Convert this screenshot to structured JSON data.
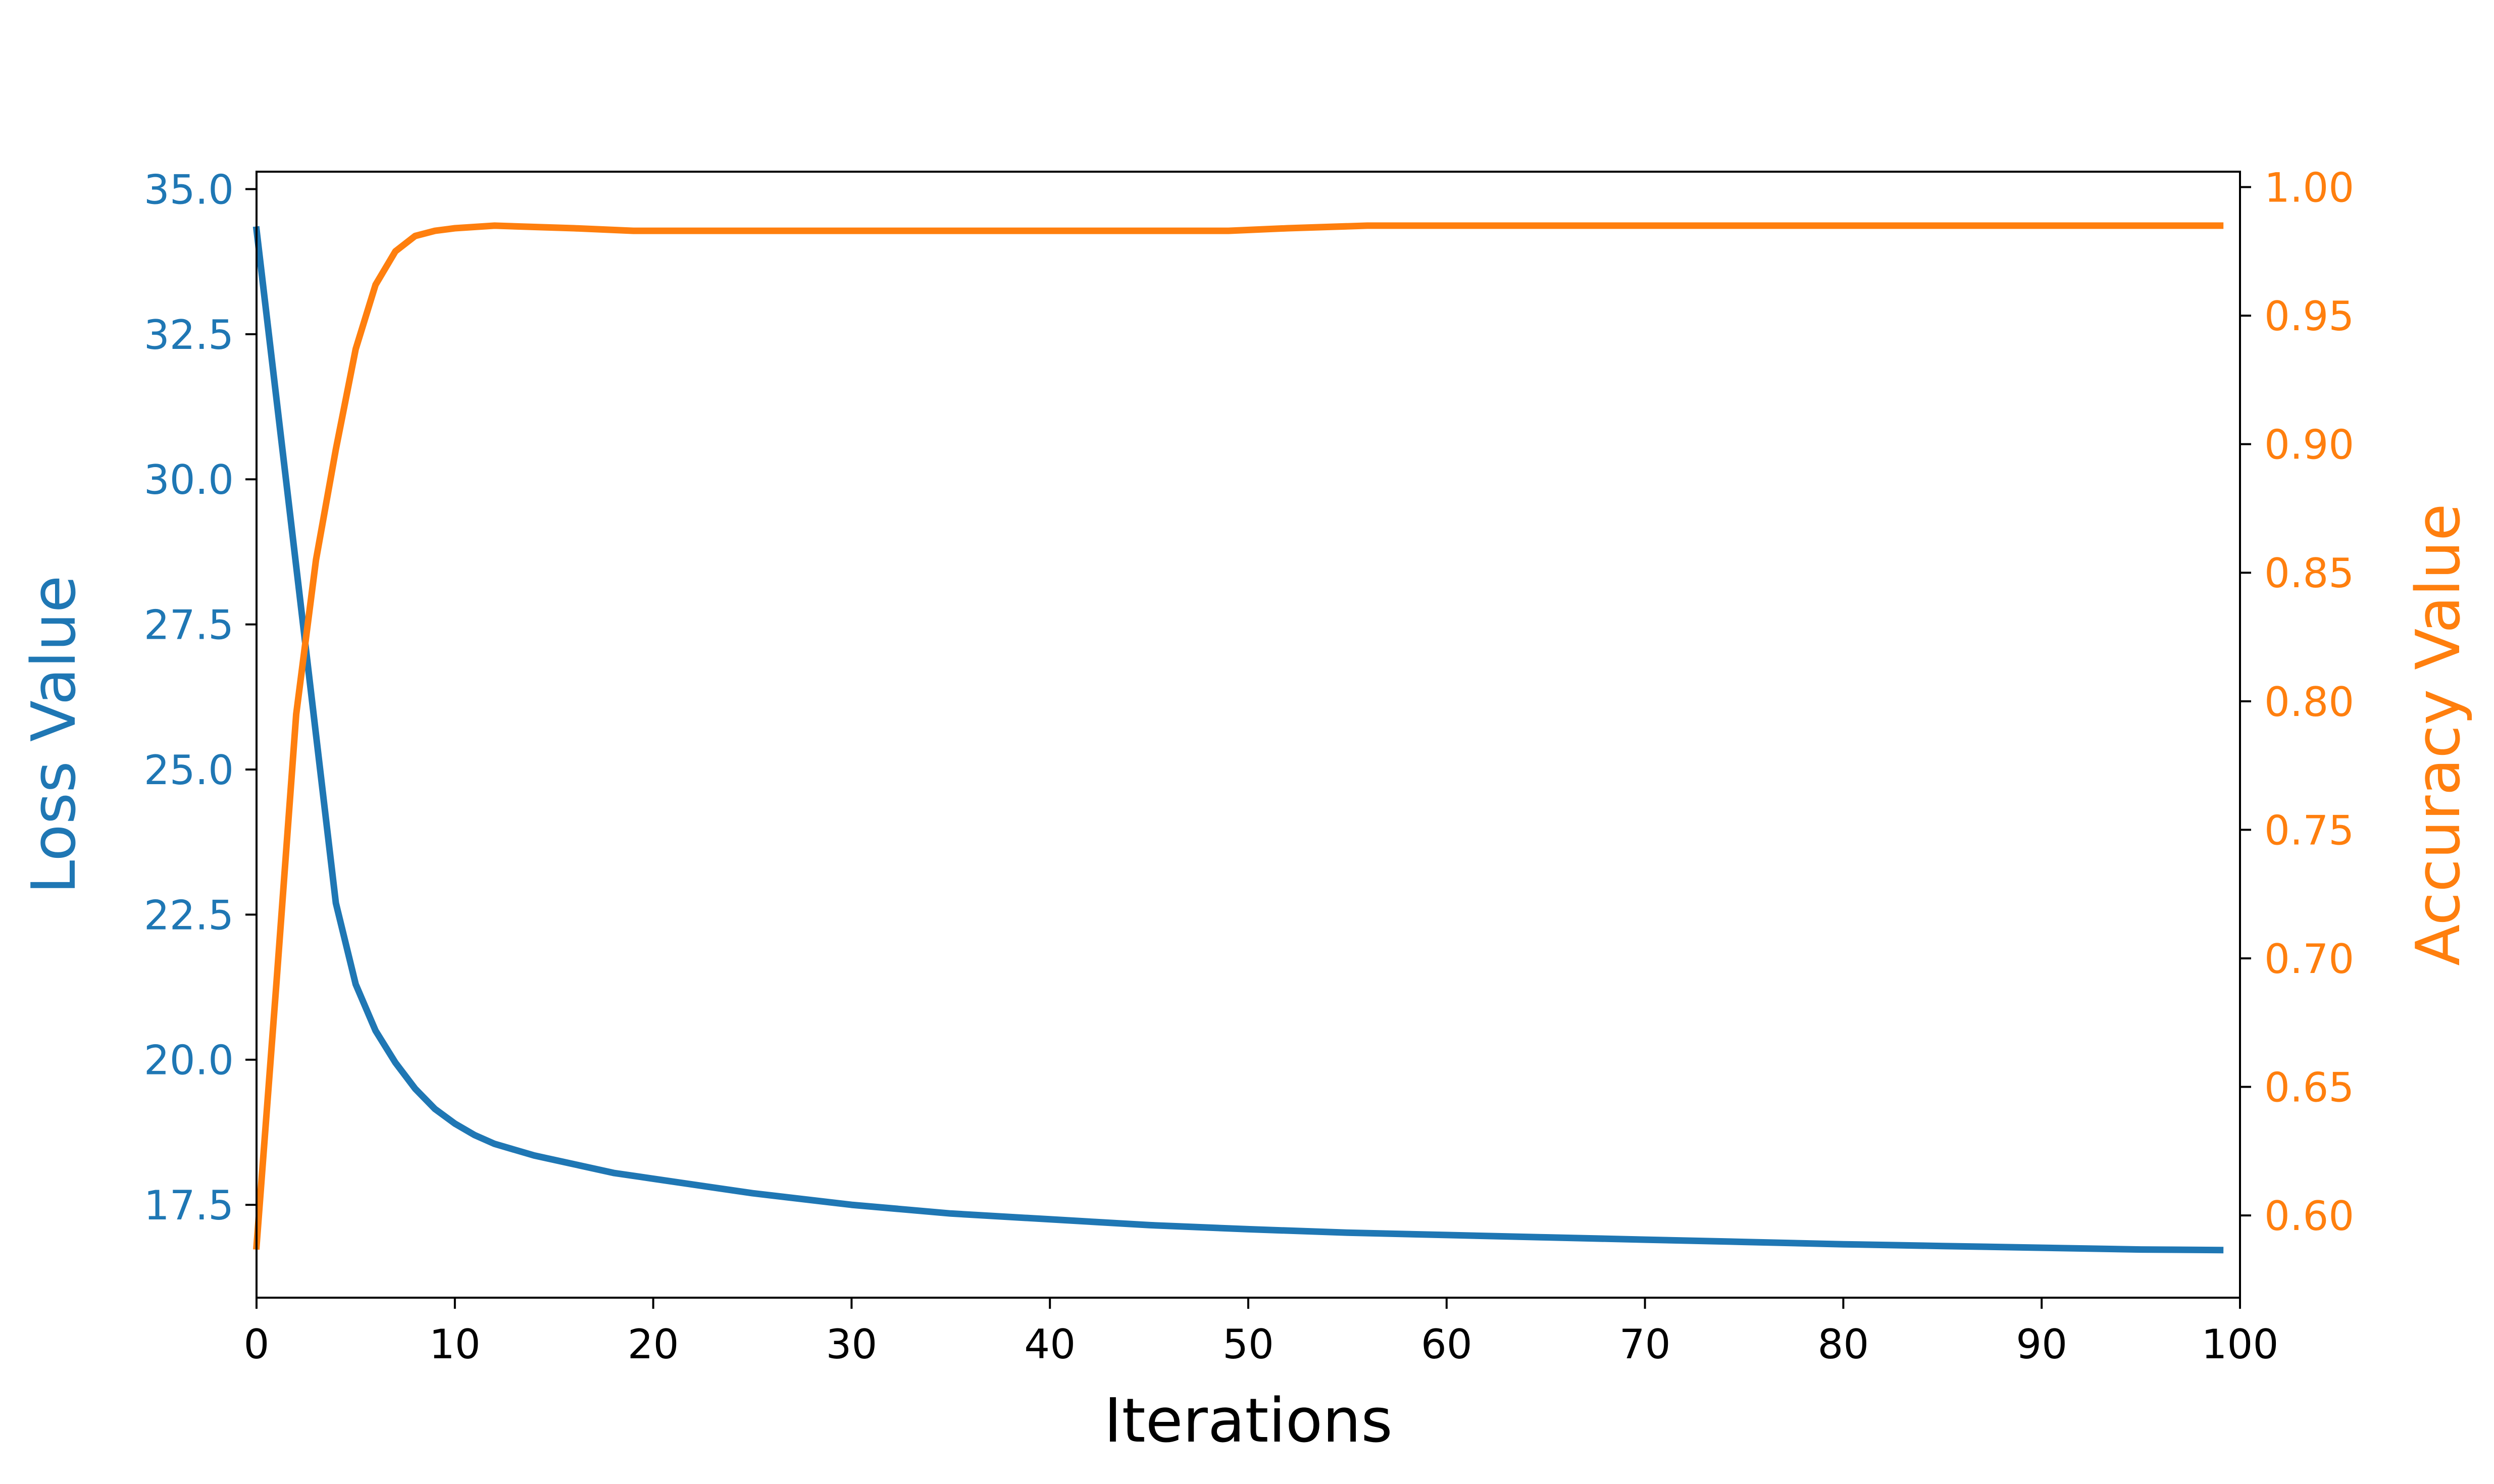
{
  "chart_data": {
    "type": "line",
    "xlabel": "Iterations",
    "xlim": [
      0,
      100
    ],
    "xticks": [
      0,
      10,
      20,
      30,
      40,
      50,
      60,
      70,
      80,
      90,
      100
    ],
    "grid": false,
    "legend": "none",
    "axes": {
      "left": {
        "label": "Loss Value",
        "color": "#1f77b4",
        "ylim": [
          15.9,
          35.3
        ],
        "ticks": [
          17.5,
          20.0,
          22.5,
          25.0,
          27.5,
          30.0,
          32.5,
          35.0
        ],
        "tick_labels": [
          "17.5",
          "20.0",
          "22.5",
          "25.0",
          "27.5",
          "30.0",
          "32.5",
          "35.0"
        ]
      },
      "right": {
        "label": "Accuracy Value",
        "color": "#ff7f0e",
        "ylim": [
          0.568,
          1.006
        ],
        "ticks": [
          0.6,
          0.65,
          0.7,
          0.75,
          0.8,
          0.85,
          0.9,
          0.95,
          1.0
        ],
        "tick_labels": [
          "0.60",
          "0.65",
          "0.70",
          "0.75",
          "0.80",
          "0.85",
          "0.90",
          "0.95",
          "1.00"
        ]
      }
    },
    "series": [
      {
        "axis": "left",
        "color": "#1f77b4",
        "x": [
          0,
          1,
          2,
          3,
          4,
          5,
          6,
          7,
          8,
          9,
          10,
          11,
          12,
          14,
          16,
          18,
          20,
          25,
          30,
          35,
          40,
          45,
          50,
          55,
          60,
          65,
          70,
          75,
          80,
          85,
          90,
          95,
          99
        ],
        "values": [
          34.3,
          31.4,
          28.5,
          25.6,
          22.7,
          21.3,
          20.5,
          19.95,
          19.5,
          19.15,
          18.9,
          18.7,
          18.55,
          18.35,
          18.2,
          18.05,
          17.95,
          17.7,
          17.5,
          17.35,
          17.25,
          17.15,
          17.08,
          17.02,
          16.98,
          16.94,
          16.9,
          16.86,
          16.82,
          16.79,
          16.76,
          16.73,
          16.72
        ]
      },
      {
        "axis": "right",
        "color": "#ff7f0e",
        "x": [
          0,
          1,
          2,
          3,
          4,
          5,
          6,
          7,
          8,
          9,
          10,
          12,
          14,
          16,
          19,
          30,
          40,
          49,
          52,
          56,
          60,
          70,
          80,
          90,
          99
        ],
        "values": [
          0.588,
          0.69,
          0.795,
          0.855,
          0.898,
          0.937,
          0.962,
          0.975,
          0.981,
          0.983,
          0.984,
          0.985,
          0.9845,
          0.984,
          0.983,
          0.983,
          0.983,
          0.983,
          0.984,
          0.985,
          0.985,
          0.985,
          0.985,
          0.985,
          0.985
        ]
      }
    ]
  }
}
